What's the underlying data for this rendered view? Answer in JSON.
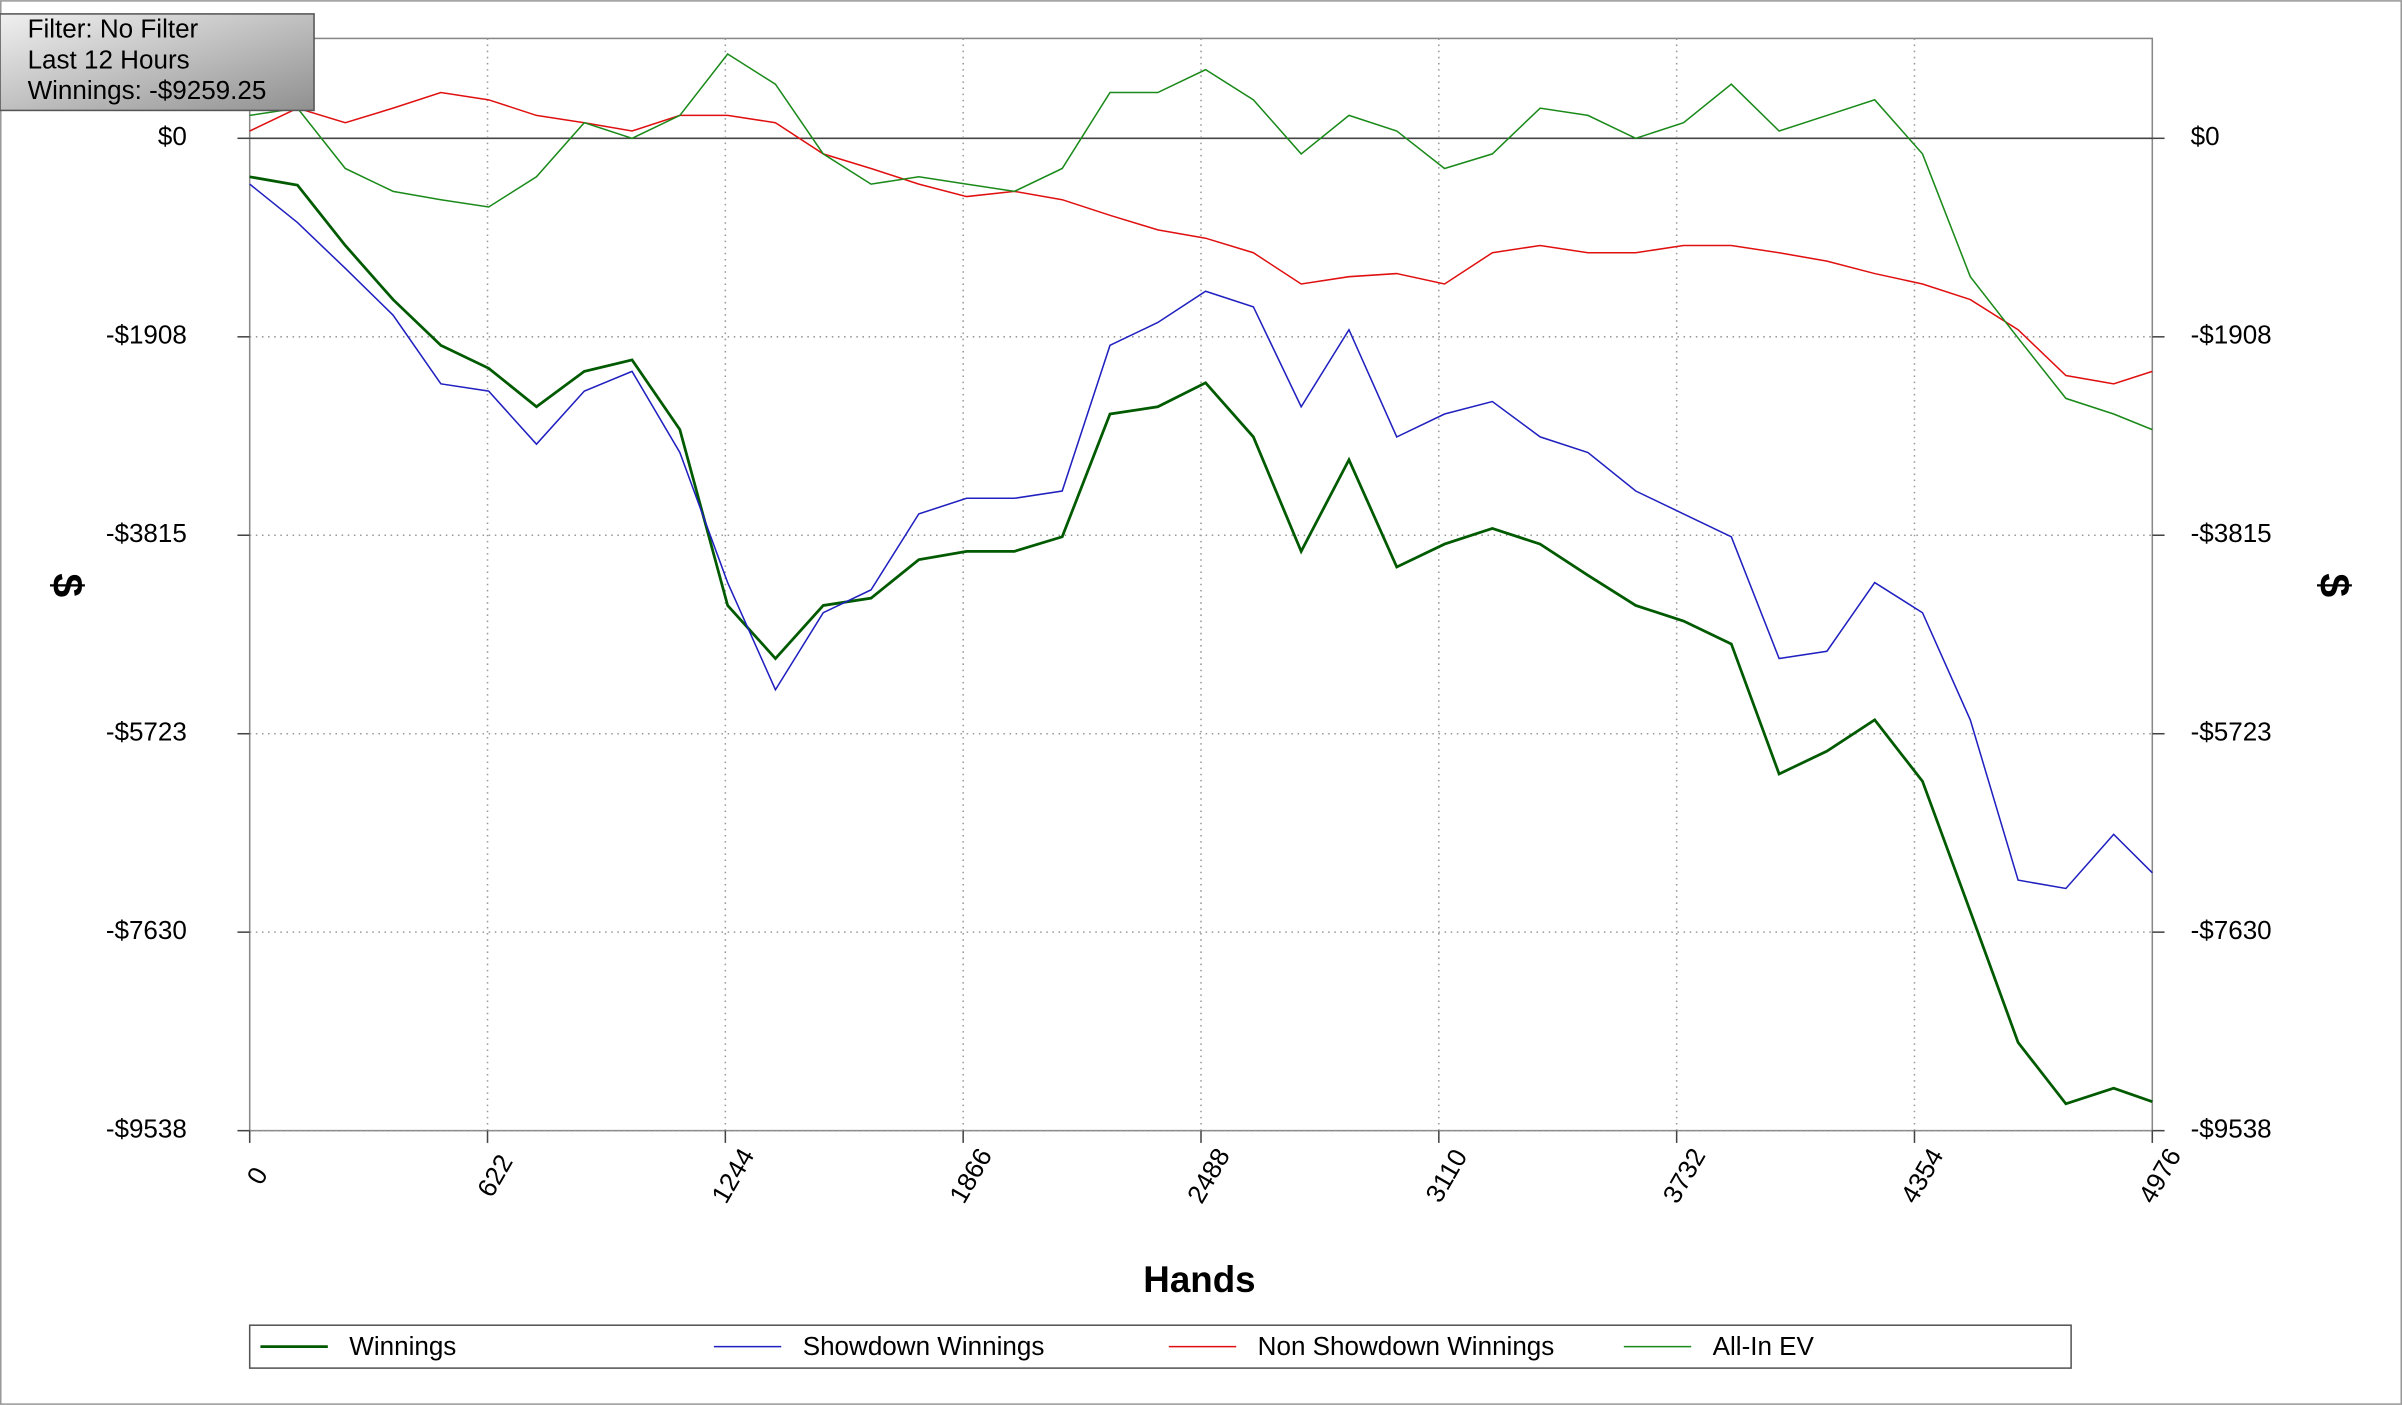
{
  "chart_data": {
    "type": "line",
    "annotations": [
      "Filter: No Filter",
      "Last 12 Hours",
      "Winnings: -$9259.25"
    ],
    "xlabel": "Hands",
    "ylabel": "$",
    "x": [
      0,
      125,
      250,
      375,
      500,
      625,
      750,
      875,
      1000,
      1125,
      1250,
      1375,
      1500,
      1625,
      1750,
      1875,
      2000,
      2125,
      2250,
      2375,
      2500,
      2625,
      2750,
      2875,
      3000,
      3125,
      3250,
      3375,
      3500,
      3625,
      3750,
      3875,
      4000,
      4125,
      4250,
      4375,
      4500,
      4625,
      4750,
      4875,
      4976
    ],
    "series": [
      {
        "name": "Winnings",
        "color": "#005a00",
        "values": [
          -370,
          -450,
          -1030,
          -1550,
          -1990,
          -2210,
          -2580,
          -2240,
          -2130,
          -2800,
          -4490,
          -5000,
          -4490,
          -4420,
          -4050,
          -3970,
          -3970,
          -3830,
          -2650,
          -2580,
          -2350,
          -2870,
          -3970,
          -3090,
          -4120,
          -3900,
          -3750,
          -3900,
          -4200,
          -4490,
          -4640,
          -4860,
          -6110,
          -5890,
          -5590,
          -6180,
          -7430,
          -8690,
          -9280,
          -9130,
          -9259.25
        ]
      },
      {
        "name": "Showdown Winnings",
        "color": "#2020c0",
        "values": [
          -440,
          -810,
          -1250,
          -1700,
          -2360,
          -2430,
          -2940,
          -2430,
          -2240,
          -3020,
          -4270,
          -5300,
          -4560,
          -4340,
          -3610,
          -3460,
          -3460,
          -3390,
          -1990,
          -1770,
          -1470,
          -1620,
          -2580,
          -1840,
          -2870,
          -2650,
          -2530,
          -2870,
          -3020,
          -3390,
          -3610,
          -3830,
          -5000,
          -4930,
          -4270,
          -4560,
          -5590,
          -7130,
          -7210,
          -6690,
          -7060
        ]
      },
      {
        "name": "Non Showdown Winnings",
        "color": "#e01010",
        "values": [
          70,
          290,
          150,
          290,
          440,
          370,
          220,
          150,
          70,
          220,
          220,
          150,
          -150,
          -290,
          -440,
          -560,
          -510,
          -590,
          -740,
          -880,
          -960,
          -1100,
          -1400,
          -1330,
          -1300,
          -1400,
          -1100,
          -1030,
          -1100,
          -1100,
          -1030,
          -1030,
          -1100,
          -1180,
          -1300,
          -1400,
          -1550,
          -1840,
          -2280,
          -2360,
          -2240
        ]
      },
      {
        "name": "All-In EV",
        "color": "#1a8a1a",
        "values": [
          220,
          290,
          -290,
          -510,
          -590,
          -660,
          -370,
          150,
          0,
          220,
          810,
          520,
          -150,
          -440,
          -370,
          -440,
          -510,
          -290,
          440,
          440,
          660,
          370,
          -150,
          220,
          70,
          -290,
          -150,
          290,
          220,
          0,
          150,
          520,
          70,
          220,
          370,
          -150,
          -1330,
          -1920,
          -2500,
          -2650,
          -2800
        ]
      }
    ],
    "xlim": [
      0,
      4976
    ],
    "xticks": [
      0,
      622,
      1244,
      1866,
      2488,
      3110,
      3732,
      4354,
      4976
    ],
    "ylim": [
      -9538,
      960
    ],
    "yticks": [
      {
        "value": 0,
        "label": "$0"
      },
      {
        "value": -1908,
        "label": "-$1908"
      },
      {
        "value": -3815,
        "label": "-$3815"
      },
      {
        "value": -5723,
        "label": "-$5723"
      },
      {
        "value": -7630,
        "label": "-$7630"
      },
      {
        "value": -9538,
        "label": "-$9538"
      }
    ],
    "grid": true
  }
}
